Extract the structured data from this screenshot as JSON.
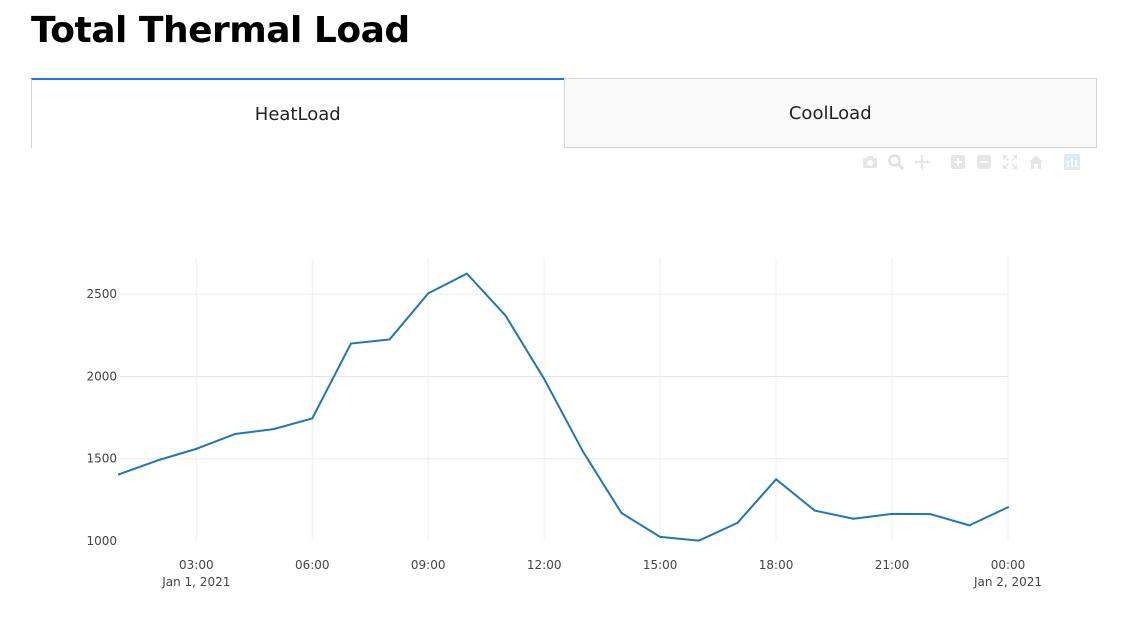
{
  "page": {
    "title": "Total Thermal Load"
  },
  "tabs": [
    {
      "label": "HeatLoad",
      "active": true
    },
    {
      "label": "CoolLoad",
      "active": false
    }
  ],
  "modebar": {
    "icons": [
      "camera-icon",
      "zoom-icon",
      "pan-icon",
      "zoom-in-icon",
      "zoom-out-icon",
      "autoscale-icon",
      "reset-axes-icon",
      "plotly-logo-icon"
    ]
  },
  "colors": {
    "series": "#1f77b4",
    "tab_accent": "#1975fa",
    "grid": "#eeeeee"
  },
  "chart_data": {
    "type": "line",
    "title": "",
    "xlabel": "",
    "ylabel": "",
    "x": [
      "2021-01-01 01:00",
      "2021-01-01 02:00",
      "2021-01-01 03:00",
      "2021-01-01 04:00",
      "2021-01-01 05:00",
      "2021-01-01 06:00",
      "2021-01-01 07:00",
      "2021-01-01 08:00",
      "2021-01-01 09:00",
      "2021-01-01 10:00",
      "2021-01-01 11:00",
      "2021-01-01 12:00",
      "2021-01-01 13:00",
      "2021-01-01 14:00",
      "2021-01-01 15:00",
      "2021-01-01 16:00",
      "2021-01-01 17:00",
      "2021-01-01 18:00",
      "2021-01-01 19:00",
      "2021-01-01 20:00",
      "2021-01-01 21:00",
      "2021-01-01 22:00",
      "2021-01-01 23:00",
      "2021-01-02 00:00"
    ],
    "series": [
      {
        "values": [
          1405,
          1490,
          1560,
          1650,
          1680,
          1745,
          2200,
          2225,
          2505,
          2625,
          2370,
          1985,
          1545,
          1170,
          1025,
          1002,
          1110,
          1375,
          1185,
          1135,
          1165,
          1163,
          1095,
          1205
        ]
      }
    ],
    "xlim": [
      "2021-01-01 01:00",
      "2021-01-02 00:00"
    ],
    "ylim": [
      1000,
      2720
    ],
    "y_ticks": [
      {
        "value": 1000,
        "label": "1000"
      },
      {
        "value": 1500,
        "label": "1500"
      },
      {
        "value": 2000,
        "label": "2000"
      },
      {
        "value": 2500,
        "label": "2500"
      }
    ],
    "x_ticks": [
      {
        "value": "2021-01-01 03:00",
        "label": "03:00",
        "sublabel": "Jan 1, 2021"
      },
      {
        "value": "2021-01-01 06:00",
        "label": "06:00",
        "sublabel": ""
      },
      {
        "value": "2021-01-01 09:00",
        "label": "09:00",
        "sublabel": ""
      },
      {
        "value": "2021-01-01 12:00",
        "label": "12:00",
        "sublabel": ""
      },
      {
        "value": "2021-01-01 15:00",
        "label": "15:00",
        "sublabel": ""
      },
      {
        "value": "2021-01-01 18:00",
        "label": "18:00",
        "sublabel": ""
      },
      {
        "value": "2021-01-01 21:00",
        "label": "21:00",
        "sublabel": ""
      },
      {
        "value": "2021-01-02 00:00",
        "label": "00:00",
        "sublabel": "Jan 2, 2021"
      }
    ],
    "grid": true,
    "legend": "none"
  }
}
